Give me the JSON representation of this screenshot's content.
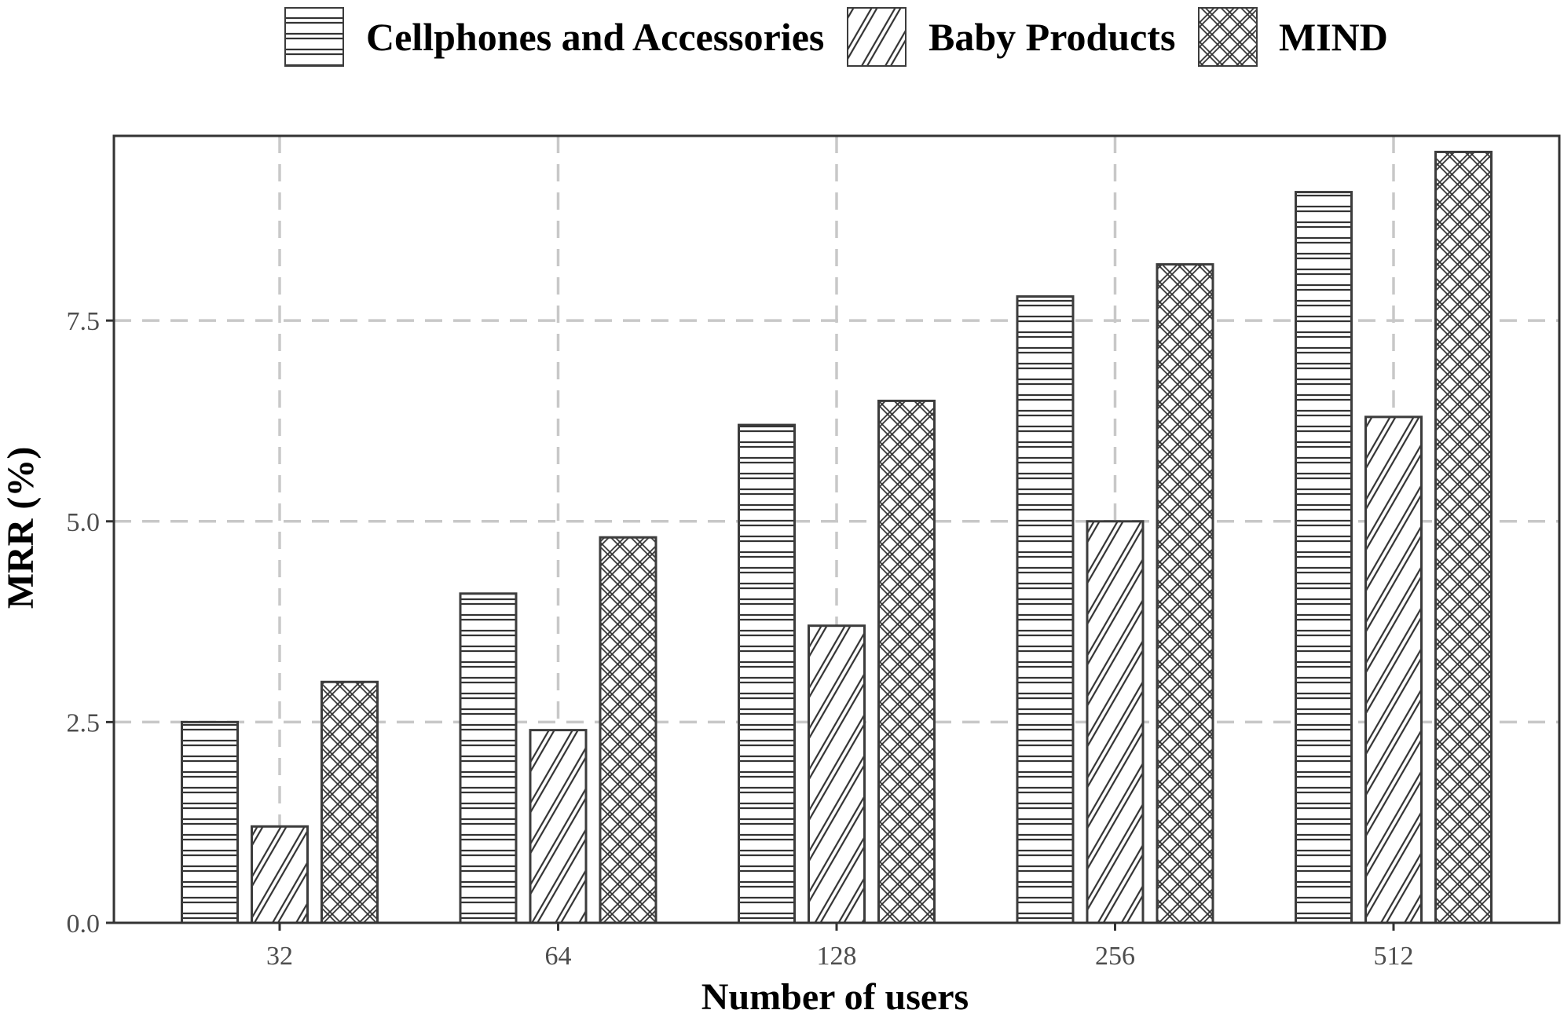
{
  "chart_data": {
    "type": "bar",
    "xlabel": "Number of users",
    "ylabel": "MRR (%)",
    "categories": [
      "32",
      "64",
      "128",
      "256",
      "512"
    ],
    "yticks": [
      "0.0",
      "2.5",
      "5.0",
      "7.5"
    ],
    "ylim": [
      0,
      9.8
    ],
    "grid": true,
    "legend_position": "top",
    "series": [
      {
        "name": "Cellphones and Accessories",
        "pattern": "horizontal-lines",
        "values": [
          2.5,
          4.1,
          6.2,
          7.8,
          9.1
        ]
      },
      {
        "name": "Baby Products",
        "pattern": "diagonal-lines",
        "values": [
          1.2,
          2.4,
          3.7,
          5.0,
          6.3
        ]
      },
      {
        "name": "MIND",
        "pattern": "crosshatch",
        "values": [
          3.0,
          4.8,
          6.5,
          8.2,
          9.6
        ]
      }
    ],
    "colors": {
      "bar_stroke": "#3c3c3c",
      "bar_fill": "#ffffff",
      "grid": "#c8c8c8",
      "panel_border": "#333333"
    }
  }
}
